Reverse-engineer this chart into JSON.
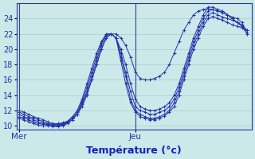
{
  "bg_color": "#cce8e8",
  "grid_color": "#aacccc",
  "line_color": "#2233aa",
  "xlabel": "Température (°c)",
  "xlabel_color": "#1122bb",
  "tick_label_color": "#2233aa",
  "xlabel_fontsize": 9,
  "ytick_fontsize": 7,
  "xtick_fontsize": 7.5,
  "ylim": [
    9.5,
    26.0
  ],
  "yticks": [
    10,
    12,
    14,
    16,
    18,
    20,
    22,
    24
  ],
  "mer_x": 0,
  "jeu_x": 24,
  "xlim": [
    -0.5,
    48
  ],
  "curves": [
    {
      "x": [
        0,
        1,
        2,
        3,
        4,
        5,
        6,
        7,
        8,
        9,
        10,
        11,
        12,
        13,
        14,
        15,
        16,
        17,
        18,
        19,
        20,
        21,
        22,
        23,
        24,
        25,
        26,
        27,
        28,
        29,
        30,
        31,
        32,
        33,
        34,
        35,
        36,
        37,
        38,
        39,
        40,
        41,
        42,
        43,
        44,
        45,
        46,
        47
      ],
      "y": [
        12,
        11.8,
        11.5,
        11.2,
        11.0,
        10.8,
        10.5,
        10.3,
        10.3,
        10.4,
        10.6,
        11.0,
        11.5,
        12.5,
        14.0,
        16.0,
        18.0,
        20.0,
        21.5,
        22.0,
        22.0,
        21.5,
        20.5,
        19.0,
        17.0,
        16.2,
        16.0,
        16.0,
        16.2,
        16.5,
        17.0,
        18.0,
        19.5,
        21.0,
        22.5,
        23.5,
        24.5,
        25.0,
        25.2,
        25.3,
        25.2,
        25.0,
        24.8,
        24.5,
        24.2,
        24.0,
        23.5,
        22.0
      ]
    },
    {
      "x": [
        0,
        1,
        2,
        3,
        4,
        5,
        6,
        7,
        8,
        9,
        10,
        11,
        12,
        13,
        14,
        15,
        16,
        17,
        18,
        19,
        20,
        21,
        22,
        23,
        24,
        25,
        26,
        27,
        28,
        29,
        30,
        31,
        32,
        33,
        34,
        35,
        36,
        37,
        38,
        39,
        40,
        41,
        42,
        43,
        44,
        45,
        46,
        47
      ],
      "y": [
        11.8,
        11.5,
        11.2,
        11.0,
        10.8,
        10.5,
        10.3,
        10.2,
        10.2,
        10.3,
        10.6,
        11.2,
        12.0,
        13.5,
        15.5,
        17.5,
        19.5,
        21.0,
        22.0,
        22.0,
        21.5,
        20.0,
        18.0,
        15.5,
        13.5,
        12.5,
        12.2,
        12.0,
        12.0,
        12.2,
        12.5,
        13.0,
        14.0,
        15.5,
        17.5,
        19.5,
        21.5,
        23.0,
        24.5,
        25.5,
        25.5,
        25.2,
        25.0,
        24.5,
        24.0,
        23.5,
        23.0,
        22.5
      ]
    },
    {
      "x": [
        0,
        1,
        2,
        3,
        4,
        5,
        6,
        7,
        8,
        9,
        10,
        11,
        12,
        13,
        14,
        15,
        16,
        17,
        18,
        19,
        20,
        21,
        22,
        23,
        24,
        25,
        26,
        27,
        28,
        29,
        30,
        31,
        32,
        33,
        34,
        35,
        36,
        37,
        38,
        39,
        40,
        41,
        42,
        43,
        44,
        45,
        46,
        47
      ],
      "y": [
        11.5,
        11.2,
        11.0,
        10.8,
        10.5,
        10.3,
        10.2,
        10.1,
        10.1,
        10.2,
        10.5,
        11.0,
        11.8,
        13.2,
        15.0,
        17.0,
        19.0,
        20.8,
        22.0,
        22.0,
        21.5,
        19.5,
        17.0,
        14.5,
        12.5,
        12.0,
        11.8,
        11.5,
        11.5,
        11.8,
        12.0,
        12.5,
        13.5,
        15.0,
        17.0,
        19.0,
        21.0,
        22.5,
        24.0,
        25.0,
        25.2,
        25.0,
        24.8,
        24.5,
        24.0,
        23.5,
        23.0,
        22.5
      ]
    },
    {
      "x": [
        0,
        1,
        2,
        3,
        4,
        5,
        6,
        7,
        8,
        9,
        10,
        11,
        12,
        13,
        14,
        15,
        16,
        17,
        18,
        19,
        20,
        21,
        22,
        23,
        24,
        25,
        26,
        27,
        28,
        29,
        30,
        31,
        32,
        33,
        34,
        35,
        36,
        37,
        38,
        39,
        40,
        41,
        42,
        43,
        44,
        45,
        46,
        47
      ],
      "y": [
        11.2,
        11.0,
        10.8,
        10.5,
        10.3,
        10.2,
        10.1,
        10.0,
        10.0,
        10.1,
        10.4,
        10.8,
        11.5,
        13.0,
        14.5,
        16.5,
        18.5,
        20.5,
        21.8,
        22.0,
        21.5,
        19.0,
        16.5,
        13.5,
        12.0,
        11.5,
        11.2,
        11.0,
        11.0,
        11.2,
        11.5,
        12.0,
        13.0,
        14.5,
        16.5,
        18.5,
        20.5,
        22.0,
        23.5,
        24.5,
        24.8,
        24.5,
        24.2,
        24.0,
        23.8,
        23.5,
        23.2,
        22.5
      ]
    },
    {
      "x": [
        0,
        1,
        2,
        3,
        4,
        5,
        6,
        7,
        8,
        9,
        10,
        11,
        12,
        13,
        14,
        15,
        16,
        17,
        18,
        19,
        20,
        21,
        22,
        23,
        24,
        25,
        26,
        27,
        28,
        29,
        30,
        31,
        32,
        33,
        34,
        35,
        36,
        37,
        38,
        39,
        40,
        41,
        42,
        43,
        44,
        45,
        46,
        47
      ],
      "y": [
        11.0,
        10.8,
        10.5,
        10.3,
        10.1,
        10.0,
        10.0,
        9.9,
        9.9,
        10.0,
        10.3,
        10.8,
        11.5,
        12.8,
        14.2,
        16.0,
        18.0,
        20.0,
        21.5,
        22.0,
        21.5,
        18.5,
        15.5,
        13.0,
        11.8,
        11.2,
        11.0,
        10.8,
        10.8,
        11.0,
        11.3,
        11.8,
        12.5,
        14.0,
        16.0,
        18.0,
        20.0,
        21.5,
        23.0,
        24.0,
        24.3,
        24.0,
        23.8,
        23.5,
        23.2,
        23.0,
        22.8,
        22.2
      ]
    }
  ]
}
